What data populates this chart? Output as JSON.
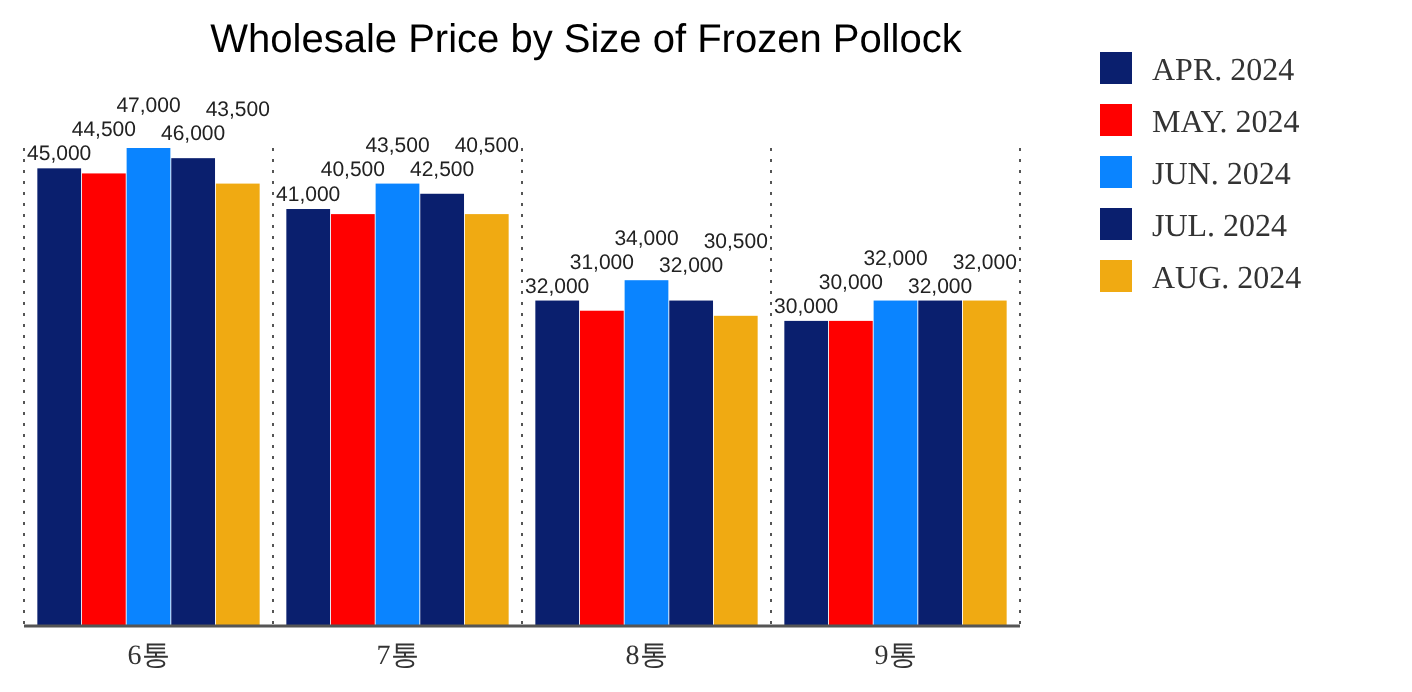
{
  "chart_data": {
    "type": "bar",
    "title": "Wholesale Price by Size of Frozen Pollock",
    "categories": [
      "6통",
      "7통",
      "8통",
      "9통"
    ],
    "series": [
      {
        "name": "APR. 2024",
        "color": "#0a1f6e",
        "values": [
          45000,
          41000,
          32000,
          30000
        ],
        "value_labels": [
          "45,000",
          "41,000",
          "32,000",
          "30,000"
        ]
      },
      {
        "name": "MAY. 2024",
        "color": "#ff0000",
        "values": [
          44500,
          40500,
          31000,
          30000
        ],
        "value_labels": [
          "44,500",
          "40,500",
          "31,000",
          "30,000"
        ]
      },
      {
        "name": "JUN. 2024",
        "color": "#0a84ff",
        "values": [
          47000,
          43500,
          34000,
          32000
        ],
        "value_labels": [
          "47,000",
          "43,500",
          "34,000",
          "32,000"
        ]
      },
      {
        "name": "JUL. 2024",
        "color": "#0a1f6e",
        "values": [
          46000,
          42500,
          32000,
          32000
        ],
        "value_labels": [
          "46,000",
          "42,500",
          "32,000",
          "32,000"
        ]
      },
      {
        "name": "AUG. 2024",
        "color": "#f0aa12",
        "values": [
          43500,
          40500,
          30500,
          32000
        ],
        "value_labels": [
          "43,500",
          "40,500",
          "30,500",
          "32,000"
        ]
      }
    ],
    "tick_labels": "x",
    "legend": "right"
  }
}
